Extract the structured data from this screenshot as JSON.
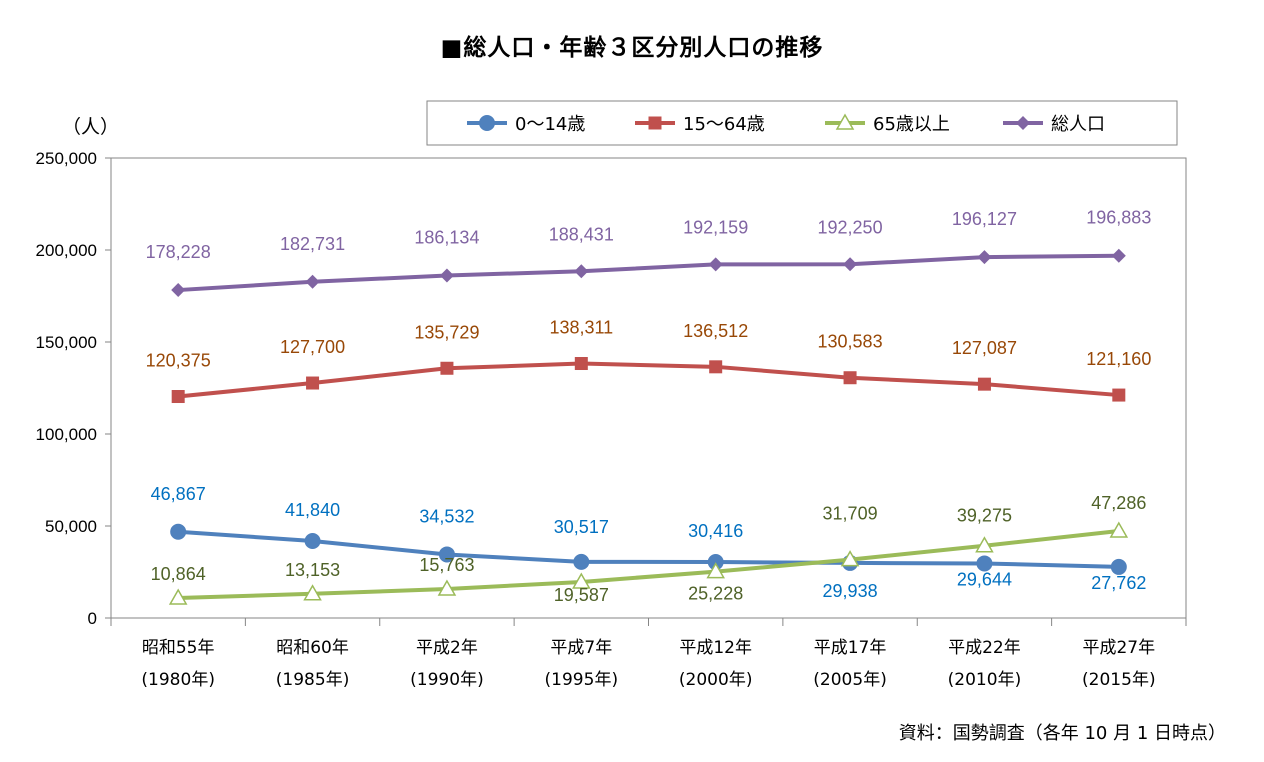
{
  "title": "■総人口・年齢３区分別人口の推移",
  "source_note": "資料：国勢調査（各年 10 月 1 日時点）",
  "chart_data": {
    "type": "line",
    "unit_label": "（人）",
    "ylim": [
      0,
      250000
    ],
    "yticks": [
      0,
      50000,
      100000,
      150000,
      200000,
      250000
    ],
    "ytick_labels": [
      "0",
      "50,000",
      "100,000",
      "150,000",
      "200,000",
      "250,000"
    ],
    "categories": [
      [
        "昭和55年",
        "(1980年)"
      ],
      [
        "昭和60年",
        "(1985年)"
      ],
      [
        "平成2年",
        "(1990年)"
      ],
      [
        "平成7年",
        "(1995年)"
      ],
      [
        "平成12年",
        "(2000年)"
      ],
      [
        "平成17年",
        "(2005年)"
      ],
      [
        "平成22年",
        "(2010年)"
      ],
      [
        "平成27年",
        "(2015年)"
      ]
    ],
    "legend_position": "top-right",
    "series": [
      {
        "name": "0～14歳",
        "color": "#4F81BD",
        "label_color": "#0070C0",
        "marker": "circle",
        "values": [
          46867,
          41840,
          34532,
          30517,
          30416,
          29938,
          29644,
          27762
        ],
        "labels": [
          "46,867",
          "41,840",
          "34,532",
          "30,517",
          "30,416",
          "29,938",
          "29,644",
          "27,762"
        ]
      },
      {
        "name": "15～64歳",
        "color": "#C0504D",
        "label_color": "#984807",
        "marker": "square",
        "values": [
          120375,
          127700,
          135729,
          138311,
          136512,
          130583,
          127087,
          121160
        ],
        "labels": [
          "120,375",
          "127,700",
          "135,729",
          "138,311",
          "136,512",
          "130,583",
          "127,087",
          "121,160"
        ]
      },
      {
        "name": "65歳以上",
        "color": "#9BBB59",
        "label_color": "#4F6228",
        "marker": "triangle",
        "values": [
          10864,
          13153,
          15763,
          19587,
          25228,
          31709,
          39275,
          47286
        ],
        "labels": [
          "10,864",
          "13,153",
          "15,763",
          "19,587",
          "25,228",
          "31,709",
          "39,275",
          "47,286"
        ]
      },
      {
        "name": "総人口",
        "color": "#8064A2",
        "label_color": "#8064A2",
        "marker": "diamond",
        "values": [
          178228,
          182731,
          186134,
          188431,
          192159,
          192250,
          196127,
          196883
        ],
        "labels": [
          "178,228",
          "182,731",
          "186,134",
          "188,431",
          "192,159",
          "192,250",
          "196,127",
          "196,883"
        ]
      }
    ]
  }
}
